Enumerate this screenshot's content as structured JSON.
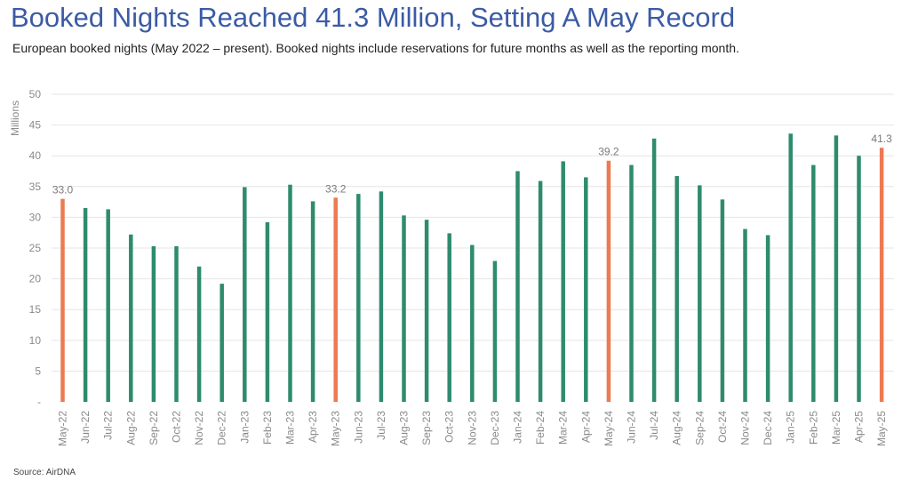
{
  "header": {
    "title": "Booked Nights Reached 41.3 Million, Setting A May Record",
    "subtitle": "European booked nights (May 2022 – present). Booked nights include reservations for future months as well as the reporting month."
  },
  "footer": {
    "source": "Source: AirDNA"
  },
  "colors": {
    "normal_bar": "#2e8b6e",
    "may_bar": "#ec7a52",
    "grid": "#e6e6e6",
    "title": "#3b5ba5"
  },
  "chart_data": {
    "type": "bar",
    "title": "Booked Nights Reached 41.3 Million, Setting A May Record",
    "subtitle": "European booked nights (May 2022 – present). Booked nights include reservations for future months as well as the reporting month.",
    "xlabel": "",
    "ylabel": "Millions",
    "ylim": [
      0,
      50
    ],
    "yticks": [
      0,
      5,
      10,
      15,
      20,
      25,
      30,
      35,
      40,
      45,
      50
    ],
    "ytick_labels": [
      "-",
      "5",
      "10",
      "15",
      "20",
      "25",
      "30",
      "35",
      "40",
      "45",
      "50"
    ],
    "grid": true,
    "categories": [
      "May-22",
      "Jun-22",
      "Jul-22",
      "Aug-22",
      "Sep-22",
      "Oct-22",
      "Nov-22",
      "Dec-22",
      "Jan-23",
      "Feb-23",
      "Mar-23",
      "Apr-23",
      "May-23",
      "Jun-23",
      "Jul-23",
      "Aug-23",
      "Sep-23",
      "Oct-23",
      "Nov-23",
      "Dec-23",
      "Jan-24",
      "Feb-24",
      "Mar-24",
      "Apr-24",
      "May-24",
      "Jun-24",
      "Jul-24",
      "Aug-24",
      "Sep-24",
      "Oct-24",
      "Nov-24",
      "Dec-24",
      "Jan-25",
      "Feb-25",
      "Mar-25",
      "Apr-25",
      "May-25"
    ],
    "values": [
      33.0,
      31.5,
      31.3,
      27.2,
      25.3,
      25.3,
      22.0,
      19.2,
      34.9,
      29.2,
      35.3,
      32.6,
      33.2,
      33.8,
      34.2,
      30.3,
      29.6,
      27.4,
      25.5,
      22.9,
      37.5,
      35.9,
      39.1,
      36.5,
      39.2,
      38.5,
      42.8,
      36.7,
      35.2,
      32.9,
      28.1,
      27.1,
      43.6,
      38.5,
      43.3,
      40.0,
      41.3
    ],
    "highlight_indices": [
      0,
      12,
      24,
      36
    ],
    "data_labels": [
      {
        "index": 0,
        "text": "33.0"
      },
      {
        "index": 12,
        "text": "33.2"
      },
      {
        "index": 24,
        "text": "39.2"
      },
      {
        "index": 36,
        "text": "41.3"
      }
    ]
  }
}
